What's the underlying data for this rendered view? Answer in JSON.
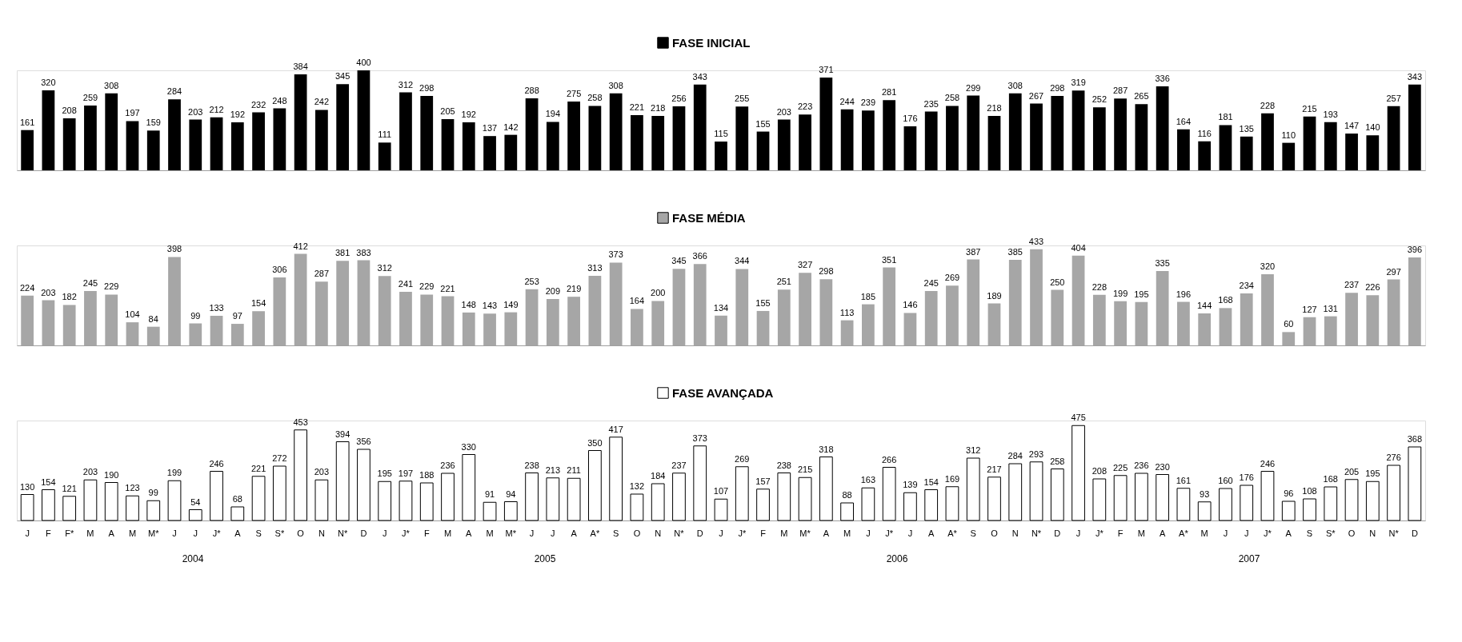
{
  "chart_data": [
    {
      "type": "bar",
      "categories": [
        null,
        null,
        null,
        null,
        null,
        null,
        null,
        null,
        null,
        null,
        null,
        null,
        null,
        null,
        null,
        null,
        null,
        null,
        null,
        null,
        null,
        null,
        null,
        null,
        null,
        null,
        null,
        null,
        null,
        null,
        null,
        null,
        null,
        null,
        null,
        null,
        null,
        null,
        null,
        null,
        null,
        null,
        null,
        null,
        null,
        null,
        null,
        null,
        null,
        null,
        null,
        null,
        null,
        null,
        null,
        null,
        null,
        null,
        null,
        null,
        null,
        null,
        null,
        null,
        null,
        null,
        null
      ],
      "data_labels": true,
      "legend": "top",
      "series": [
        {
          "name": "FASE INICIAL",
          "color": "#000000",
          "values": [
            161,
            320,
            208,
            259,
            308,
            197,
            159,
            284,
            203,
            212,
            192,
            232,
            248,
            384,
            242,
            345,
            400,
            111,
            312,
            298,
            205,
            192,
            137,
            142,
            288,
            194,
            275,
            258,
            308,
            221,
            218,
            256,
            343,
            115,
            255,
            155,
            203,
            223,
            371,
            244,
            239,
            281,
            176,
            235,
            258,
            299,
            218,
            308,
            267,
            298,
            319,
            252,
            287,
            265,
            336,
            164,
            116,
            181,
            135,
            228,
            110,
            215,
            193,
            147,
            140,
            257,
            343
          ]
        }
      ]
    },
    {
      "type": "bar",
      "categories": [
        null,
        null,
        null,
        null,
        null,
        null,
        null,
        null,
        null,
        null,
        null,
        null,
        null,
        null,
        null,
        null,
        null,
        null,
        null,
        null,
        null,
        null,
        null,
        null,
        null,
        null,
        null,
        null,
        null,
        null,
        null,
        null,
        null,
        null,
        null,
        null,
        null,
        null,
        null,
        null,
        null,
        null,
        null,
        null,
        null,
        null,
        null,
        null,
        null,
        null,
        null,
        null,
        null,
        null,
        null,
        null,
        null,
        null,
        null,
        null,
        null,
        null,
        null,
        null,
        null,
        null,
        null
      ],
      "data_labels": true,
      "legend": "top",
      "series": [
        {
          "name": "FASE MÉDIA",
          "color": "#a6a6a6",
          "values": [
            224,
            203,
            182,
            245,
            229,
            104,
            84,
            398,
            99,
            133,
            97,
            154,
            306,
            412,
            287,
            381,
            383,
            312,
            241,
            229,
            221,
            148,
            143,
            149,
            253,
            209,
            219,
            313,
            373,
            164,
            200,
            345,
            366,
            134,
            344,
            155,
            251,
            327,
            298,
            113,
            185,
            351,
            146,
            245,
            269,
            387,
            189,
            385,
            433,
            250,
            404,
            228,
            199,
            195,
            335,
            196,
            144,
            168,
            234,
            320,
            60,
            127,
            131,
            237,
            226,
            297,
            396
          ]
        }
      ]
    },
    {
      "type": "bar",
      "categories": [
        "J",
        "F",
        "F*",
        "M",
        "A",
        "M",
        "M*",
        "J",
        "J",
        "J*",
        "A",
        "S",
        "S*",
        "O",
        "N",
        "N*",
        "D",
        "J",
        "J*",
        "F",
        "M",
        "A",
        "M",
        "M*",
        "J",
        "J",
        "A",
        "A*",
        "S",
        "O",
        "N",
        "N*",
        "D",
        "J",
        "J*",
        "F",
        "M",
        "M*",
        "A",
        "M",
        "J",
        "J*",
        "J",
        "A",
        "A*",
        "S",
        "O",
        "N",
        "N*",
        "D",
        "J",
        "J*",
        "F",
        "M",
        "A",
        "A*",
        "M",
        "J",
        "J",
        "J*",
        "A",
        "S",
        "S*",
        "O",
        "N",
        "N*",
        "D"
      ],
      "data_labels": true,
      "legend": "top",
      "annotations": [
        "2004",
        "2005",
        "2006",
        "2007"
      ],
      "series": [
        {
          "name": "FASE AVANÇADA",
          "color": "#ffffff",
          "values": [
            130,
            154,
            121,
            203,
            190,
            123,
            99,
            199,
            54,
            246,
            68,
            221,
            272,
            453,
            203,
            394,
            356,
            195,
            197,
            188,
            236,
            330,
            91,
            94,
            238,
            213,
            211,
            350,
            417,
            132,
            184,
            237,
            373,
            107,
            269,
            157,
            238,
            215,
            318,
            88,
            163,
            266,
            139,
            154,
            169,
            312,
            217,
            284,
            293,
            258,
            475,
            208,
            225,
            236,
            230,
            161,
            93,
            160,
            176,
            246,
            96,
            108,
            168,
            205,
            195,
            276,
            368
          ]
        }
      ]
    }
  ]
}
